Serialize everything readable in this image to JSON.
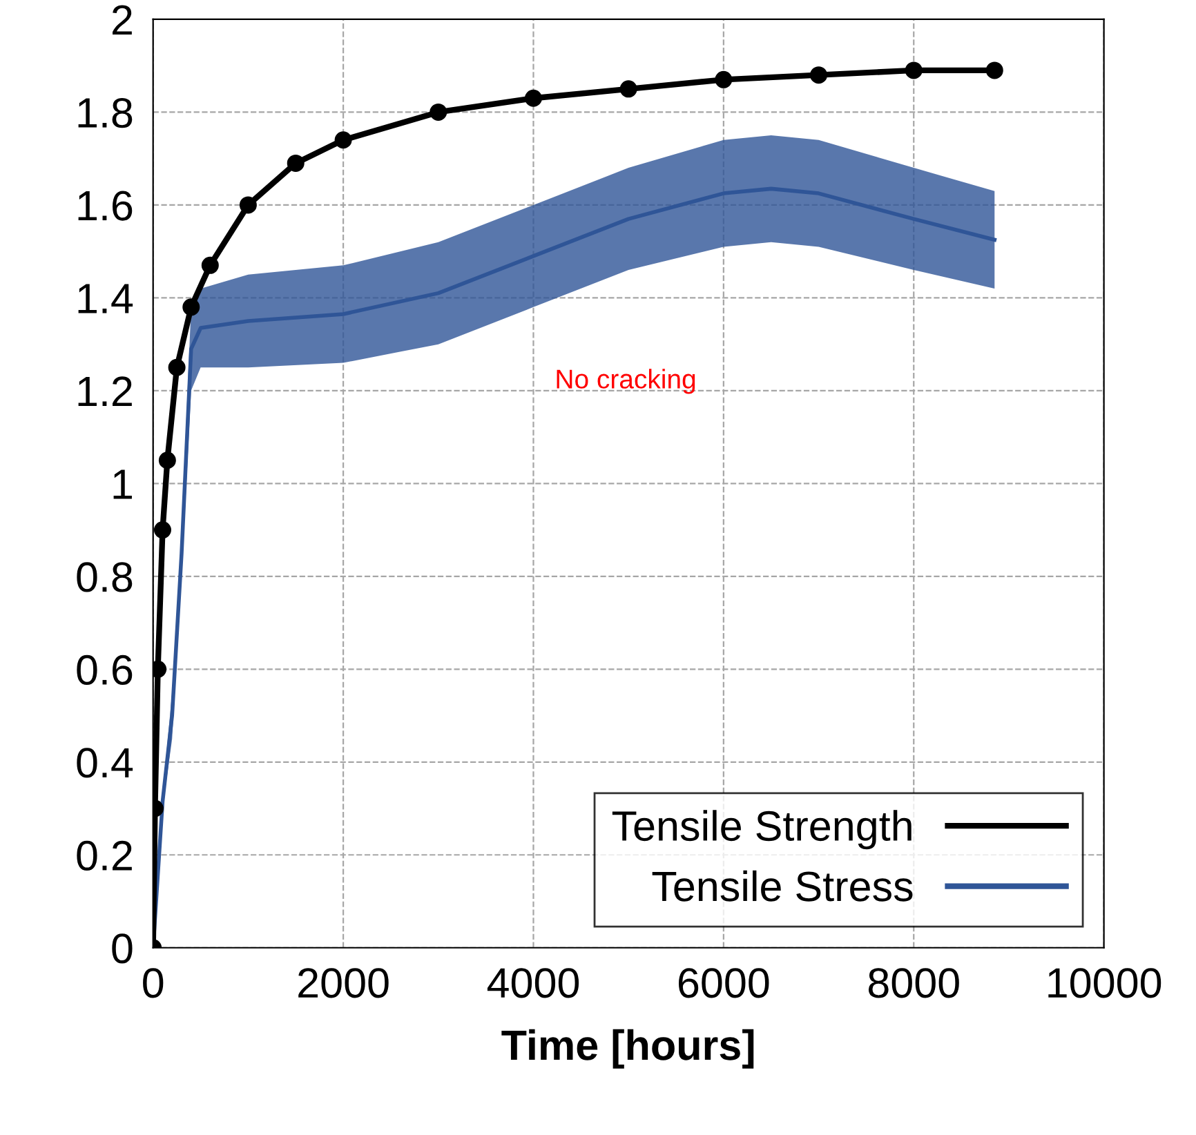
{
  "chart_data": {
    "type": "line",
    "xlabel": "Time [hours]",
    "xlim": [
      0,
      10000
    ],
    "xticks": [
      0,
      2000,
      4000,
      6000,
      8000,
      10000
    ],
    "ylim": [
      0,
      2
    ],
    "yticks": [
      0,
      0.2,
      0.4,
      0.6,
      0.8,
      1,
      1.2,
      1.4,
      1.6,
      1.8,
      2
    ],
    "grid": true,
    "legend": "bottom right",
    "series": [
      {
        "name": "Tensile Strength",
        "color": "#000000",
        "marker": "circle",
        "x": [
          0,
          20,
          50,
          100,
          150,
          250,
          400,
          600,
          1000,
          1500,
          2000,
          3000,
          4000,
          5000,
          6000,
          7000,
          8000,
          8850
        ],
        "values": [
          0,
          0.3,
          0.6,
          0.9,
          1.05,
          1.25,
          1.38,
          1.47,
          1.6,
          1.69,
          1.74,
          1.8,
          1.83,
          1.85,
          1.87,
          1.88,
          1.89,
          1.89
        ]
      },
      {
        "name": "Tensile Stress",
        "color": "#2f5597",
        "type": "line",
        "x": [
          0,
          100,
          200,
          300,
          400,
          500,
          1000,
          2000,
          3000,
          4000,
          5000,
          6000,
          6500,
          7000,
          8000,
          8850
        ],
        "lower": [
          0,
          0.3,
          0.45,
          0.8,
          1.2,
          1.25,
          1.25,
          1.26,
          1.3,
          1.38,
          1.46,
          1.51,
          1.52,
          1.51,
          1.46,
          1.42
        ],
        "upper": [
          0,
          0.33,
          0.55,
          0.9,
          1.38,
          1.42,
          1.45,
          1.47,
          1.52,
          1.6,
          1.68,
          1.74,
          1.75,
          1.74,
          1.68,
          1.63
        ],
        "values": [
          0,
          0.315,
          0.5,
          0.85,
          1.29,
          1.335,
          1.35,
          1.365,
          1.41,
          1.49,
          1.57,
          1.625,
          1.635,
          1.625,
          1.57,
          1.525
        ]
      }
    ],
    "annotations": [
      "No cracking"
    ]
  }
}
